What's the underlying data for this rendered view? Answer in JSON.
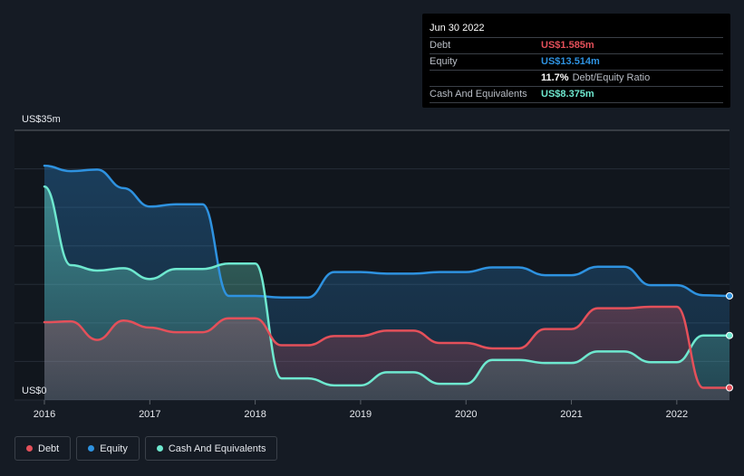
{
  "tooltip": {
    "date": "Jun 30 2022",
    "debt_label": "Debt",
    "debt_value": "US$1.585m",
    "equity_label": "Equity",
    "equity_value": "US$13.514m",
    "ratio_value": "11.7%",
    "ratio_label": "Debt/Equity Ratio",
    "cash_label": "Cash And Equivalents",
    "cash_value": "US$8.375m"
  },
  "legend": {
    "debt": "Debt",
    "equity": "Equity",
    "cash": "Cash And Equivalents"
  },
  "colors": {
    "debt": "#e4505a",
    "equity": "#2e92e0",
    "cash": "#6ee8cf",
    "background": "#151b24"
  },
  "chart_data": {
    "type": "area",
    "y_top_label": "US$35m",
    "y_bottom_label": "US$0",
    "ylim": [
      0,
      35
    ],
    "xlim": [
      2016,
      2022.5
    ],
    "x_ticks": [
      "2016",
      "2017",
      "2018",
      "2019",
      "2020",
      "2021",
      "2022"
    ],
    "grid": true,
    "legend_position": "bottom-left",
    "series": [
      {
        "key": "equity",
        "name": "Equity",
        "points": [
          [
            2016.0,
            30.4
          ],
          [
            2016.25,
            29.7
          ],
          [
            2016.5,
            29.9
          ],
          [
            2016.75,
            27.5
          ],
          [
            2017.0,
            25.1
          ],
          [
            2017.25,
            25.4
          ],
          [
            2017.5,
            25.4
          ],
          [
            2017.75,
            13.5
          ],
          [
            2018.0,
            13.5
          ],
          [
            2018.25,
            13.3
          ],
          [
            2018.5,
            13.3
          ],
          [
            2018.75,
            16.6
          ],
          [
            2019.0,
            16.6
          ],
          [
            2019.25,
            16.4
          ],
          [
            2019.5,
            16.4
          ],
          [
            2019.75,
            16.6
          ],
          [
            2020.0,
            16.6
          ],
          [
            2020.25,
            17.2
          ],
          [
            2020.5,
            17.2
          ],
          [
            2020.75,
            16.2
          ],
          [
            2021.0,
            16.2
          ],
          [
            2021.25,
            17.3
          ],
          [
            2021.5,
            17.3
          ],
          [
            2021.75,
            14.9
          ],
          [
            2022.0,
            14.9
          ],
          [
            2022.25,
            13.6
          ],
          [
            2022.5,
            13.514
          ]
        ]
      },
      {
        "key": "cash",
        "name": "Cash And Equivalents",
        "points": [
          [
            2016.0,
            27.7
          ],
          [
            2016.25,
            17.5
          ],
          [
            2016.5,
            16.8
          ],
          [
            2016.75,
            17.1
          ],
          [
            2017.0,
            15.7
          ],
          [
            2017.25,
            17.0
          ],
          [
            2017.5,
            17.0
          ],
          [
            2017.75,
            17.7
          ],
          [
            2018.0,
            17.7
          ],
          [
            2018.25,
            2.8
          ],
          [
            2018.5,
            2.8
          ],
          [
            2018.75,
            1.9
          ],
          [
            2019.0,
            1.9
          ],
          [
            2019.25,
            3.6
          ],
          [
            2019.5,
            3.6
          ],
          [
            2019.75,
            2.1
          ],
          [
            2020.0,
            2.1
          ],
          [
            2020.25,
            5.2
          ],
          [
            2020.5,
            5.2
          ],
          [
            2020.75,
            4.8
          ],
          [
            2021.0,
            4.8
          ],
          [
            2021.25,
            6.3
          ],
          [
            2021.5,
            6.3
          ],
          [
            2021.75,
            4.9
          ],
          [
            2022.0,
            4.9
          ],
          [
            2022.25,
            8.375
          ],
          [
            2022.5,
            8.375
          ]
        ]
      },
      {
        "key": "debt",
        "name": "Debt",
        "points": [
          [
            2016.0,
            10.1
          ],
          [
            2016.25,
            10.2
          ],
          [
            2016.5,
            7.8
          ],
          [
            2016.75,
            10.3
          ],
          [
            2017.0,
            9.4
          ],
          [
            2017.25,
            8.8
          ],
          [
            2017.5,
            8.8
          ],
          [
            2017.75,
            10.6
          ],
          [
            2018.0,
            10.6
          ],
          [
            2018.25,
            7.1
          ],
          [
            2018.5,
            7.1
          ],
          [
            2018.75,
            8.3
          ],
          [
            2019.0,
            8.3
          ],
          [
            2019.25,
            9.0
          ],
          [
            2019.5,
            9.0
          ],
          [
            2019.75,
            7.4
          ],
          [
            2020.0,
            7.4
          ],
          [
            2020.25,
            6.7
          ],
          [
            2020.5,
            6.7
          ],
          [
            2020.75,
            9.2
          ],
          [
            2021.0,
            9.2
          ],
          [
            2021.25,
            11.9
          ],
          [
            2021.5,
            11.9
          ],
          [
            2021.75,
            12.1
          ],
          [
            2022.0,
            12.1
          ],
          [
            2022.25,
            1.585
          ],
          [
            2022.5,
            1.585
          ]
        ]
      }
    ]
  }
}
